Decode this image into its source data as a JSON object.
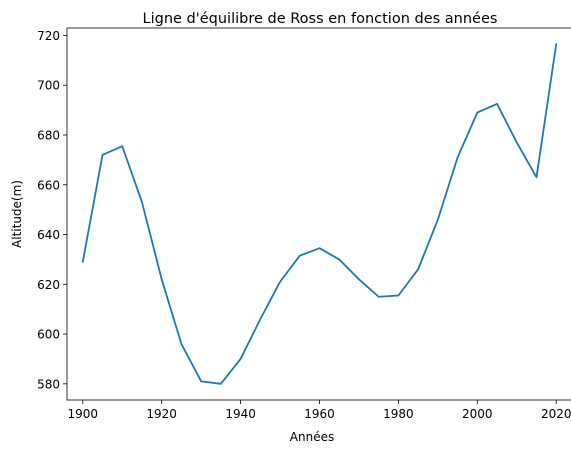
{
  "chart_data": {
    "type": "line",
    "title": "Ligne d'équilibre de Ross en fonction des années",
    "xlabel": "Années",
    "ylabel": "Altitude(m)",
    "xlim": [
      1896,
      2024
    ],
    "ylim": [
      573.5,
      723
    ],
    "xticks": [
      1900,
      1920,
      1940,
      1960,
      1980,
      2000,
      2020
    ],
    "yticks": [
      580,
      600,
      620,
      640,
      660,
      680,
      700,
      720
    ],
    "grid": false,
    "line_color": "#1f77b4",
    "series": [
      {
        "x": [
          1900,
          1905,
          1910,
          1915,
          1920,
          1925,
          1930,
          1935,
          1940,
          1945,
          1950,
          1955,
          1960,
          1965,
          1970,
          1975,
          1980,
          1985,
          1990,
          1995,
          2000,
          2005,
          2010,
          2015,
          2020
        ],
        "values": [
          629,
          672,
          675.5,
          653,
          622,
          596,
          581,
          580,
          590,
          606,
          621,
          631.5,
          634.5,
          630,
          622,
          615,
          615.5,
          626,
          646,
          671,
          689,
          692.5,
          677,
          663,
          716.5
        ]
      }
    ]
  }
}
